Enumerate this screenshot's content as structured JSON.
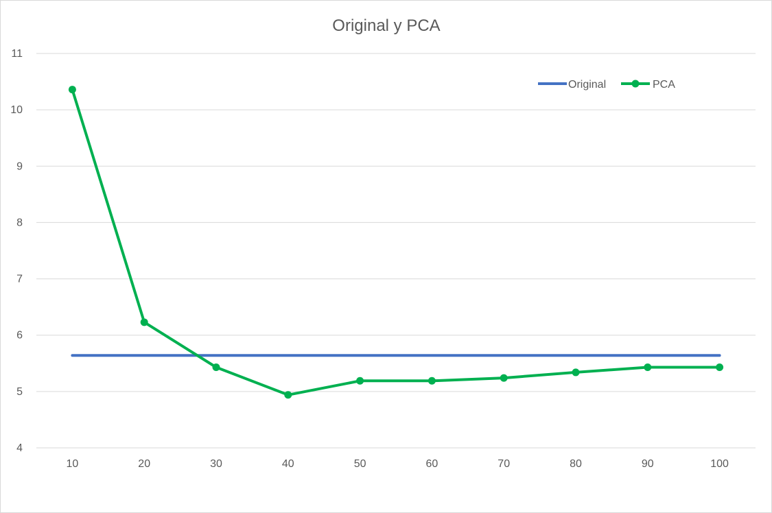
{
  "chart_data": {
    "type": "line",
    "title": "Original y PCA",
    "xlabel": "",
    "ylabel": "",
    "categories": [
      "10",
      "20",
      "30",
      "40",
      "50",
      "60",
      "70",
      "80",
      "90",
      "100"
    ],
    "ylim": [
      4,
      11
    ],
    "yticks": [
      "4",
      "5",
      "6",
      "7",
      "8",
      "9",
      "10",
      "11"
    ],
    "grid": "horizontal",
    "legend_position": "top-right",
    "series": [
      {
        "name": "Original",
        "color": "#4472C4",
        "markers": false,
        "values": [
          5.64,
          5.64,
          5.64,
          5.64,
          5.64,
          5.64,
          5.64,
          5.64,
          5.64,
          5.64
        ]
      },
      {
        "name": "PCA",
        "color": "#00B050",
        "markers": true,
        "values": [
          10.36,
          6.23,
          5.43,
          4.94,
          5.19,
          5.19,
          5.24,
          5.34,
          5.43,
          5.43
        ]
      }
    ]
  }
}
